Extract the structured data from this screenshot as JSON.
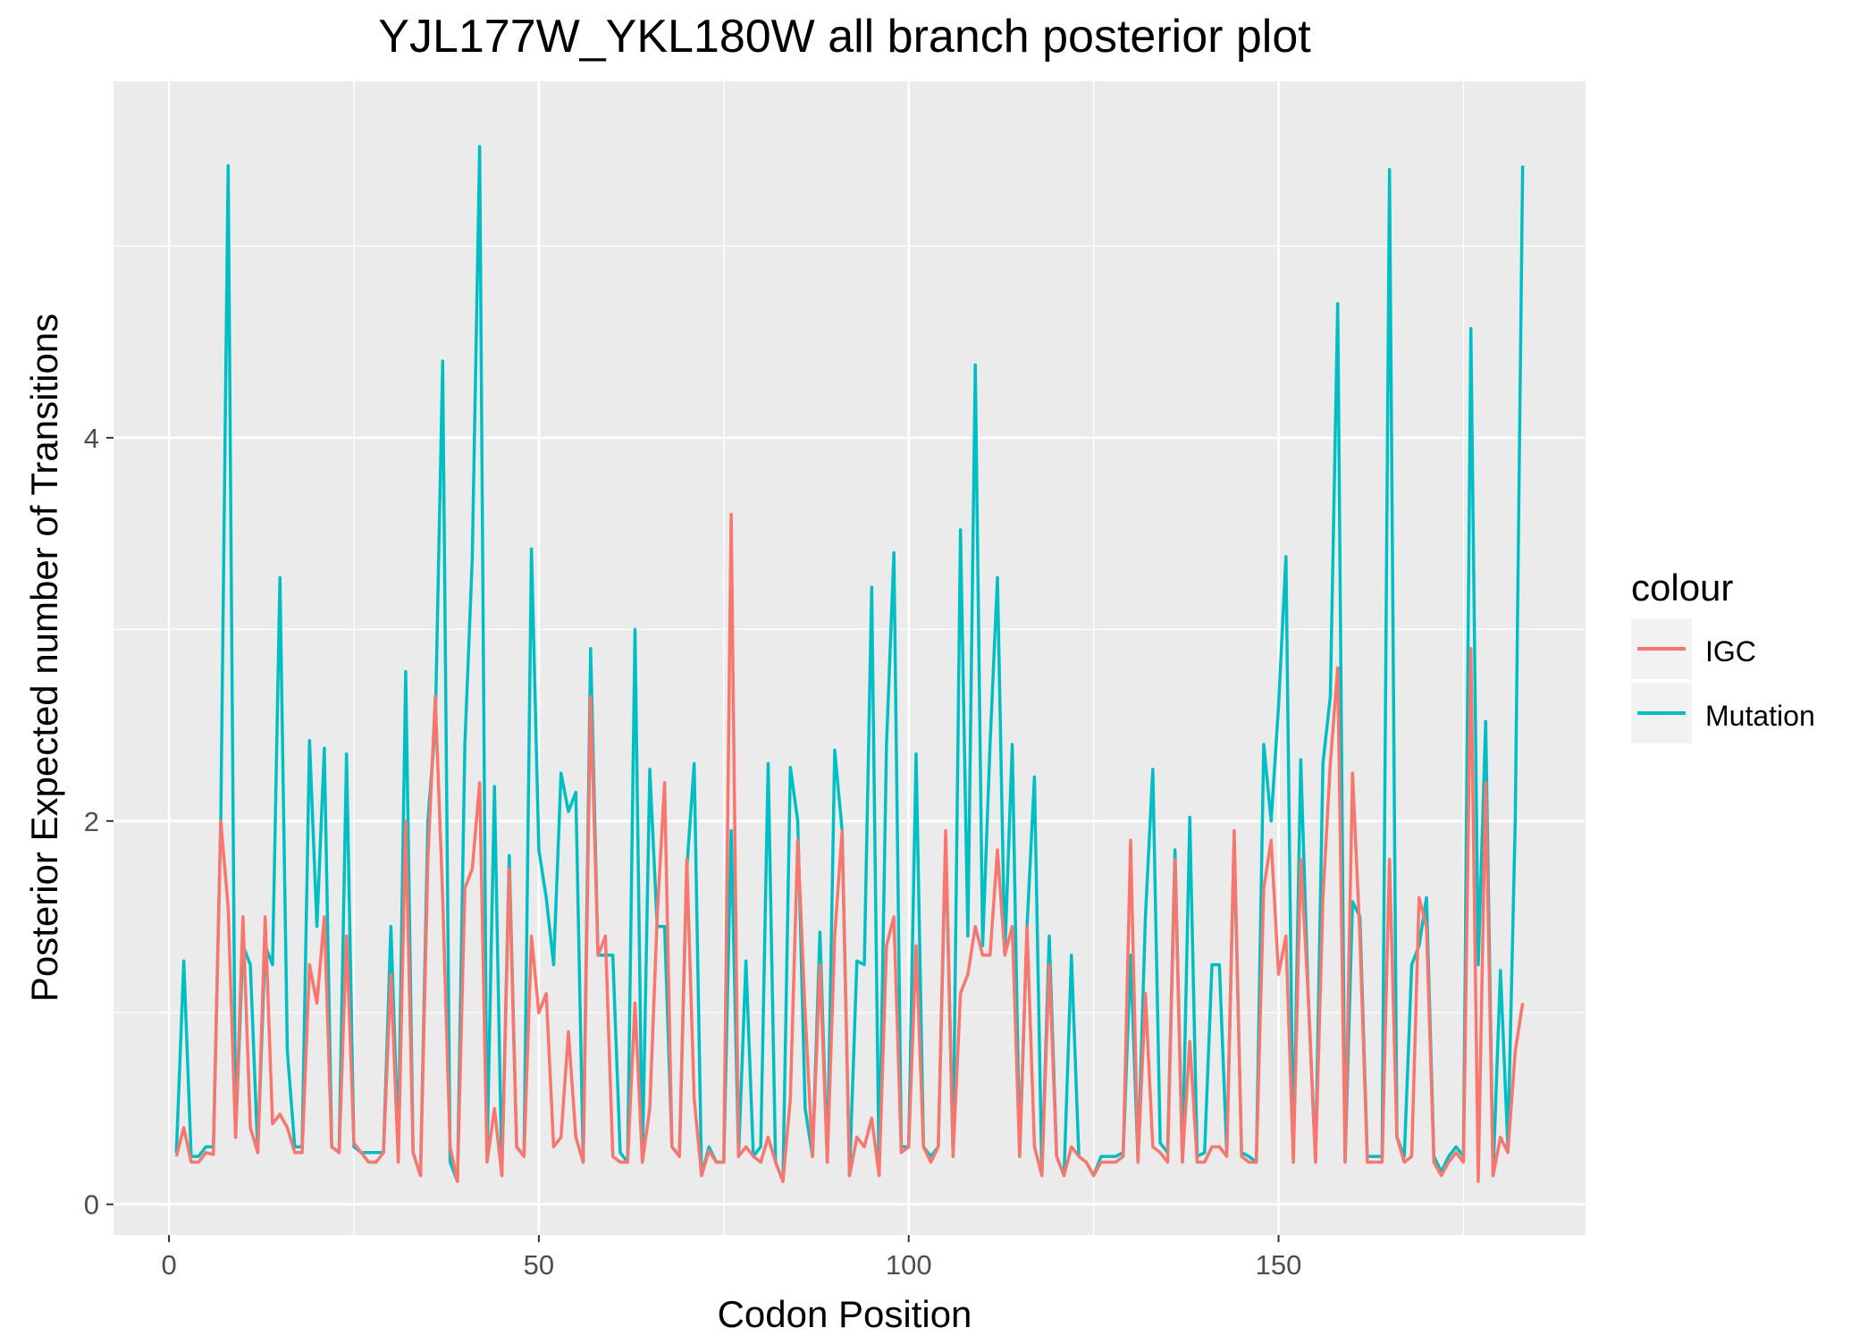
{
  "chart_data": {
    "type": "line",
    "title": "YJL177W_YKL180W all branch posterior plot",
    "xlabel": "Codon Position",
    "ylabel": "Posterior Expected number of Transitions",
    "xlim": [
      -7.5,
      191.5
    ],
    "ylim": [
      -0.16,
      5.86
    ],
    "x_ticks": [
      0,
      50,
      100,
      150
    ],
    "y_ticks": [
      0,
      2,
      4
    ],
    "legend": {
      "title": "colour",
      "position": "right"
    },
    "grid": true,
    "series": [
      {
        "name": "IGC",
        "color": "#F8766D",
        "values": [
          0.25,
          0.4,
          0.22,
          0.22,
          0.27,
          0.26,
          2.0,
          1.55,
          0.35,
          1.5,
          0.4,
          0.27,
          1.5,
          0.42,
          0.47,
          0.4,
          0.27,
          0.27,
          1.25,
          1.05,
          1.5,
          0.3,
          0.27,
          1.4,
          0.32,
          0.27,
          0.22,
          0.22,
          0.27,
          1.2,
          0.22,
          2.0,
          0.27,
          0.15,
          1.8,
          2.65,
          1.6,
          0.3,
          0.12,
          1.65,
          1.75,
          2.2,
          0.22,
          0.5,
          0.15,
          1.75,
          0.3,
          0.25,
          1.4,
          1.0,
          1.1,
          0.3,
          0.35,
          0.9,
          0.35,
          0.22,
          2.65,
          1.3,
          1.4,
          0.25,
          0.22,
          0.22,
          1.05,
          0.22,
          0.5,
          1.5,
          2.2,
          0.3,
          0.25,
          1.8,
          0.55,
          0.15,
          0.28,
          0.22,
          0.22,
          3.6,
          0.25,
          0.3,
          0.25,
          0.22,
          0.35,
          0.22,
          0.12,
          0.55,
          1.9,
          1.0,
          0.25,
          1.25,
          0.22,
          1.4,
          1.95,
          0.15,
          0.35,
          0.3,
          0.45,
          0.15,
          1.35,
          1.5,
          0.27,
          0.3,
          1.35,
          0.3,
          0.22,
          0.3,
          1.95,
          0.25,
          1.1,
          1.2,
          1.45,
          1.3,
          1.3,
          1.85,
          1.3,
          1.45,
          0.25,
          1.45,
          0.3,
          0.15,
          1.25,
          0.25,
          0.15,
          0.3,
          0.25,
          0.22,
          0.15,
          0.22,
          0.22,
          0.22,
          0.25,
          1.9,
          0.22,
          1.1,
          0.3,
          0.27,
          0.22,
          1.8,
          0.22,
          0.85,
          0.22,
          0.22,
          0.3,
          0.3,
          0.25,
          1.95,
          0.25,
          0.22,
          0.22,
          1.65,
          1.9,
          1.2,
          1.4,
          0.22,
          1.8,
          1.1,
          0.22,
          1.6,
          2.3,
          2.8,
          0.22,
          2.25,
          1.4,
          0.22,
          0.22,
          0.22,
          1.8,
          0.35,
          0.22,
          0.25,
          1.6,
          1.45,
          0.22,
          0.15,
          0.22,
          0.27,
          0.22,
          2.9,
          0.12,
          2.2,
          0.15,
          0.35,
          0.27,
          0.8,
          1.05
        ],
        "x_start": 1
      },
      {
        "name": "Mutation",
        "color": "#00BFC4",
        "values": [
          0.27,
          1.27,
          0.25,
          0.25,
          0.3,
          0.3,
          2.0,
          5.42,
          0.35,
          1.35,
          1.25,
          0.27,
          1.35,
          1.25,
          3.27,
          0.8,
          0.3,
          0.3,
          2.42,
          1.45,
          2.38,
          0.3,
          0.27,
          2.35,
          0.3,
          0.27,
          0.27,
          0.27,
          0.27,
          1.45,
          0.3,
          2.78,
          0.27,
          0.15,
          2.0,
          2.5,
          4.4,
          0.22,
          0.12,
          2.4,
          3.37,
          5.52,
          0.25,
          2.18,
          0.15,
          1.82,
          0.3,
          0.25,
          3.42,
          1.85,
          1.6,
          1.25,
          2.25,
          2.05,
          2.15,
          0.22,
          2.9,
          1.3,
          1.3,
          1.3,
          0.27,
          0.22,
          3.0,
          0.22,
          2.27,
          1.45,
          1.45,
          0.3,
          0.25,
          1.75,
          2.3,
          0.15,
          0.3,
          0.22,
          0.22,
          1.95,
          0.25,
          1.27,
          0.25,
          0.3,
          2.3,
          0.22,
          0.12,
          2.28,
          2.0,
          0.5,
          0.25,
          1.42,
          0.22,
          2.37,
          1.95,
          0.15,
          1.27,
          1.25,
          3.22,
          0.15,
          2.4,
          3.4,
          0.3,
          0.3,
          2.35,
          0.3,
          0.25,
          0.3,
          1.9,
          0.25,
          3.52,
          1.4,
          4.38,
          1.35,
          2.4,
          3.27,
          1.3,
          2.4,
          0.25,
          1.45,
          2.23,
          0.15,
          1.4,
          0.25,
          0.15,
          1.3,
          0.25,
          0.22,
          0.15,
          0.25,
          0.25,
          0.25,
          0.27,
          1.3,
          0.22,
          1.5,
          2.27,
          0.32,
          0.27,
          1.85,
          0.22,
          2.02,
          0.25,
          0.27,
          1.25,
          1.25,
          0.27,
          1.9,
          0.27,
          0.25,
          0.22,
          2.4,
          2.0,
          2.6,
          3.38,
          0.22,
          2.32,
          1.1,
          0.22,
          2.3,
          2.65,
          4.7,
          0.22,
          1.58,
          1.5,
          0.25,
          0.25,
          0.25,
          5.4,
          0.35,
          0.25,
          1.25,
          1.35,
          1.6,
          0.25,
          0.17,
          0.25,
          0.3,
          0.25,
          4.57,
          1.25,
          2.52,
          0.15,
          1.22,
          0.3,
          2.0,
          5.42
        ],
        "x_start": 1
      }
    ]
  }
}
